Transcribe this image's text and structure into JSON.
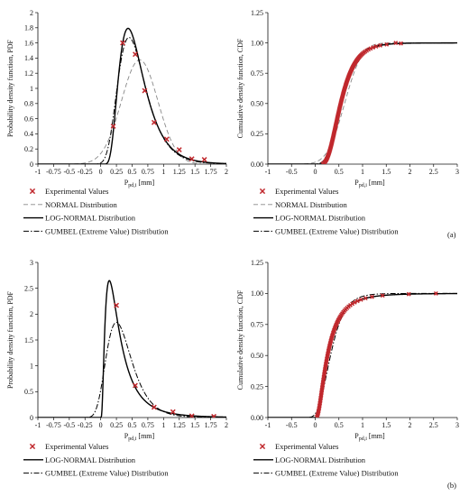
{
  "colors": {
    "experimental": "#c0282d",
    "normal": "#888888",
    "lognormal": "#000000",
    "gumbel": "#000000",
    "axis": "#111111"
  },
  "panels": [
    {
      "tag": "(a)"
    },
    {
      "tag": "(b)"
    }
  ],
  "chart_data": [
    {
      "id": "a-pdf",
      "type": "line",
      "ylabel": "Probability density function, PDF",
      "xlabel": "P",
      "xlabel_sub": "pd,i",
      "xlabel_unit": " [mm]",
      "xlim": [
        -1,
        2
      ],
      "ylim": [
        0,
        2
      ],
      "xticks": [
        "-1",
        "-0.75",
        "-0.5",
        "-0.25",
        "0",
        "0.25",
        "0.5",
        "0.75",
        "1",
        "1.25",
        "1.5",
        "1.75",
        "2"
      ],
      "xtick_values": [
        -1,
        -0.75,
        -0.5,
        -0.25,
        0,
        0.25,
        0.5,
        0.75,
        1,
        1.25,
        1.5,
        1.75,
        2
      ],
      "yticks": [
        "0",
        "0.2",
        "0.4",
        "0.6",
        "0.8",
        "1",
        "1.2",
        "1.4",
        "1.6",
        "1.8",
        "2"
      ],
      "ytick_values": [
        0,
        0.2,
        0.4,
        0.6,
        0.8,
        1,
        1.2,
        1.4,
        1.6,
        1.8,
        2
      ],
      "series": [
        {
          "name": "Experimental Values",
          "kind": "points",
          "x": [
            0.2,
            0.35,
            0.55,
            0.7,
            0.85,
            1.05,
            1.25,
            1.45,
            1.65
          ],
          "y": [
            0.5,
            1.6,
            1.45,
            0.97,
            0.55,
            0.33,
            0.19,
            0.07,
            0.06
          ]
        },
        {
          "name": "NORMAL Distribution",
          "kind": "normal",
          "mu": 0.62,
          "sigma": 0.29
        },
        {
          "name": "LOG-NORMAL Distribution",
          "kind": "lognormal",
          "mu": -0.62,
          "sigma": 0.46
        },
        {
          "name": "GUMBEL (Extreme Value) Distribution",
          "kind": "gumbel",
          "mu": 0.45,
          "beta": 0.22
        }
      ],
      "legend": [
        "Experimental Values",
        "NORMAL Distribution",
        "LOG-NORMAL Distribution",
        "GUMBEL (Extreme Value) Distribution"
      ]
    },
    {
      "id": "a-cdf",
      "type": "line",
      "ylabel": "Cumulative density function, CDF",
      "xlabel": "P",
      "xlabel_sub": "pd,i",
      "xlabel_unit": " [mm]",
      "xlim": [
        -1,
        3
      ],
      "ylim": [
        0,
        1.25
      ],
      "xticks": [
        "-1",
        "-0.5",
        "0",
        "0.5",
        "1",
        "1.5",
        "2",
        "2.5",
        "3"
      ],
      "xtick_values": [
        -1,
        -0.5,
        0,
        0.5,
        1,
        1.5,
        2,
        2.5,
        3
      ],
      "yticks": [
        "0.00",
        "0.25",
        "0.50",
        "0.75",
        "1.00",
        "1.25"
      ],
      "ytick_values": [
        0,
        0.25,
        0.5,
        0.75,
        1,
        1.25
      ],
      "series": [
        {
          "name": "Experimental Values",
          "kind": "ecdf",
          "dist": "lognormal",
          "mu": -0.62,
          "sigma": 0.46,
          "n": 120,
          "x_last": 1.7,
          "y_last": 1.0
        },
        {
          "name": "NORMAL Distribution",
          "kind": "normal_cdf",
          "mu": 0.62,
          "sigma": 0.29
        },
        {
          "name": "LOG-NORMAL Distribution",
          "kind": "lognormal_cdf",
          "mu": -0.62,
          "sigma": 0.46
        },
        {
          "name": "GUMBEL (Extreme Value) Distribution",
          "kind": "gumbel_cdf",
          "mu": 0.45,
          "beta": 0.22
        }
      ],
      "legend": [
        "Experimental Values",
        "NORMAL Distribution",
        "LOG-NORMAL Distribution",
        "GUMBEL (Extreme Value) Distribution"
      ]
    },
    {
      "id": "b-pdf",
      "type": "line",
      "ylabel": "Probability density function, PDF",
      "xlabel": "P",
      "xlabel_sub": "pd,i",
      "xlabel_unit": " [mm]",
      "xlim": [
        -1,
        2
      ],
      "ylim": [
        0,
        3
      ],
      "xticks": [
        "-1",
        "-0.75",
        "-0.5",
        "-0.25",
        "0",
        "0.25",
        "0.5",
        "0.75",
        "1",
        "1.25",
        "1.5",
        "1.75",
        "2"
      ],
      "xtick_values": [
        -1,
        -0.75,
        -0.5,
        -0.25,
        0,
        0.25,
        0.5,
        0.75,
        1,
        1.25,
        1.5,
        1.75,
        2
      ],
      "yticks": [
        "0",
        "0.5",
        "1",
        "1.5",
        "2",
        "2.5",
        "3"
      ],
      "ytick_values": [
        0,
        0.5,
        1,
        1.5,
        2,
        2.5,
        3
      ],
      "series": [
        {
          "name": "Experimental Values",
          "kind": "points",
          "x": [
            0.25,
            0.55,
            0.85,
            1.15,
            1.45,
            1.8
          ],
          "y": [
            2.17,
            0.62,
            0.2,
            0.11,
            0.03,
            0.02
          ]
        },
        {
          "name": "LOG-NORMAL Distribution",
          "kind": "lognormal",
          "mu": -1.35,
          "sigma": 0.8
        },
        {
          "name": "GUMBEL (Extreme Value) Distribution",
          "kind": "gumbel",
          "mu": 0.25,
          "beta": 0.2
        }
      ],
      "legend": [
        "Experimental Values",
        "LOG-NORMAL Distribution",
        "GUMBEL (Extreme Value) Distribution"
      ]
    },
    {
      "id": "b-cdf",
      "type": "line",
      "ylabel": "Cumulative density function, CDF",
      "xlabel": "P",
      "xlabel_sub": "pd,i",
      "xlabel_unit": " [mm]",
      "xlim": [
        -1,
        3
      ],
      "ylim": [
        0,
        1.25
      ],
      "xticks": [
        "-1",
        "-0.5",
        "0",
        "0.5",
        "1",
        "1.5",
        "2",
        "2.5",
        "3"
      ],
      "xtick_values": [
        -1,
        -0.5,
        0,
        0.5,
        1,
        1.5,
        2,
        2.5,
        3
      ],
      "yticks": [
        "0.00",
        "0.25",
        "0.50",
        "0.75",
        "1.00",
        "1.25"
      ],
      "ytick_values": [
        0,
        0.25,
        0.5,
        0.75,
        1,
        1.25
      ],
      "series": [
        {
          "name": "Experimental Values",
          "kind": "ecdf",
          "dist": "lognormal",
          "mu": -1.35,
          "sigma": 0.8,
          "n": 90,
          "x_last": 2.55,
          "y_last": 1.0
        },
        {
          "name": "LOG-NORMAL Distribution",
          "kind": "lognormal_cdf",
          "mu": -1.35,
          "sigma": 0.8
        },
        {
          "name": "GUMBEL (Extreme Value) Distribution",
          "kind": "gumbel_cdf",
          "mu": 0.25,
          "beta": 0.2
        }
      ],
      "legend": [
        "Experimental Values",
        "LOG-NORMAL Distribution",
        "GUMBEL (Extreme Value) Distribution"
      ]
    }
  ]
}
